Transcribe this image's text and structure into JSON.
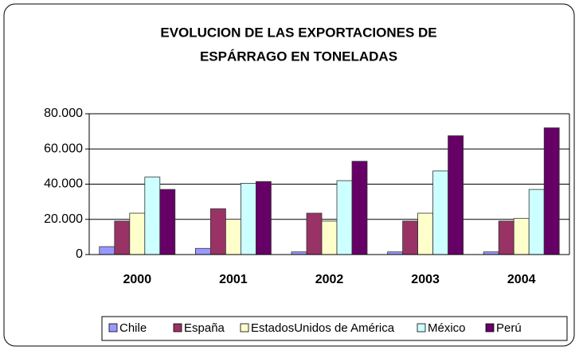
{
  "chart_data": {
    "type": "bar",
    "title": [
      "EVOLUCION DE LAS EXPORTACIONES DE",
      "ESPÁRRAGO EN TONELADAS"
    ],
    "categories": [
      "2000",
      "2001",
      "2002",
      "2003",
      "2004"
    ],
    "series": [
      {
        "name": "Chile",
        "color": "#9999FF",
        "values": [
          4500,
          3500,
          1500,
          1500,
          1500
        ]
      },
      {
        "name": "España",
        "color": "#993366",
        "values": [
          19000,
          26000,
          23500,
          19000,
          19000
        ]
      },
      {
        "name": "EstadosUnidos de América",
        "color": "#FFFFCC",
        "values": [
          23500,
          20000,
          19000,
          23500,
          20500
        ]
      },
      {
        "name": "México",
        "color": "#CCFFFF",
        "values": [
          44000,
          40500,
          42000,
          47500,
          37000
        ]
      },
      {
        "name": "Perú",
        "color": "#660066",
        "values": [
          37000,
          41500,
          53000,
          67500,
          72000
        ]
      }
    ],
    "ylim": [
      0,
      80000
    ],
    "yticks": [
      0,
      {
        "value": 20000,
        "label": "20.000"
      },
      {
        "value": 40000,
        "label": "40.000"
      },
      {
        "value": 60000,
        "label": "60.000"
      },
      {
        "value": 80000,
        "label": "80.000"
      }
    ],
    "grid": true,
    "legend": "bottom"
  }
}
